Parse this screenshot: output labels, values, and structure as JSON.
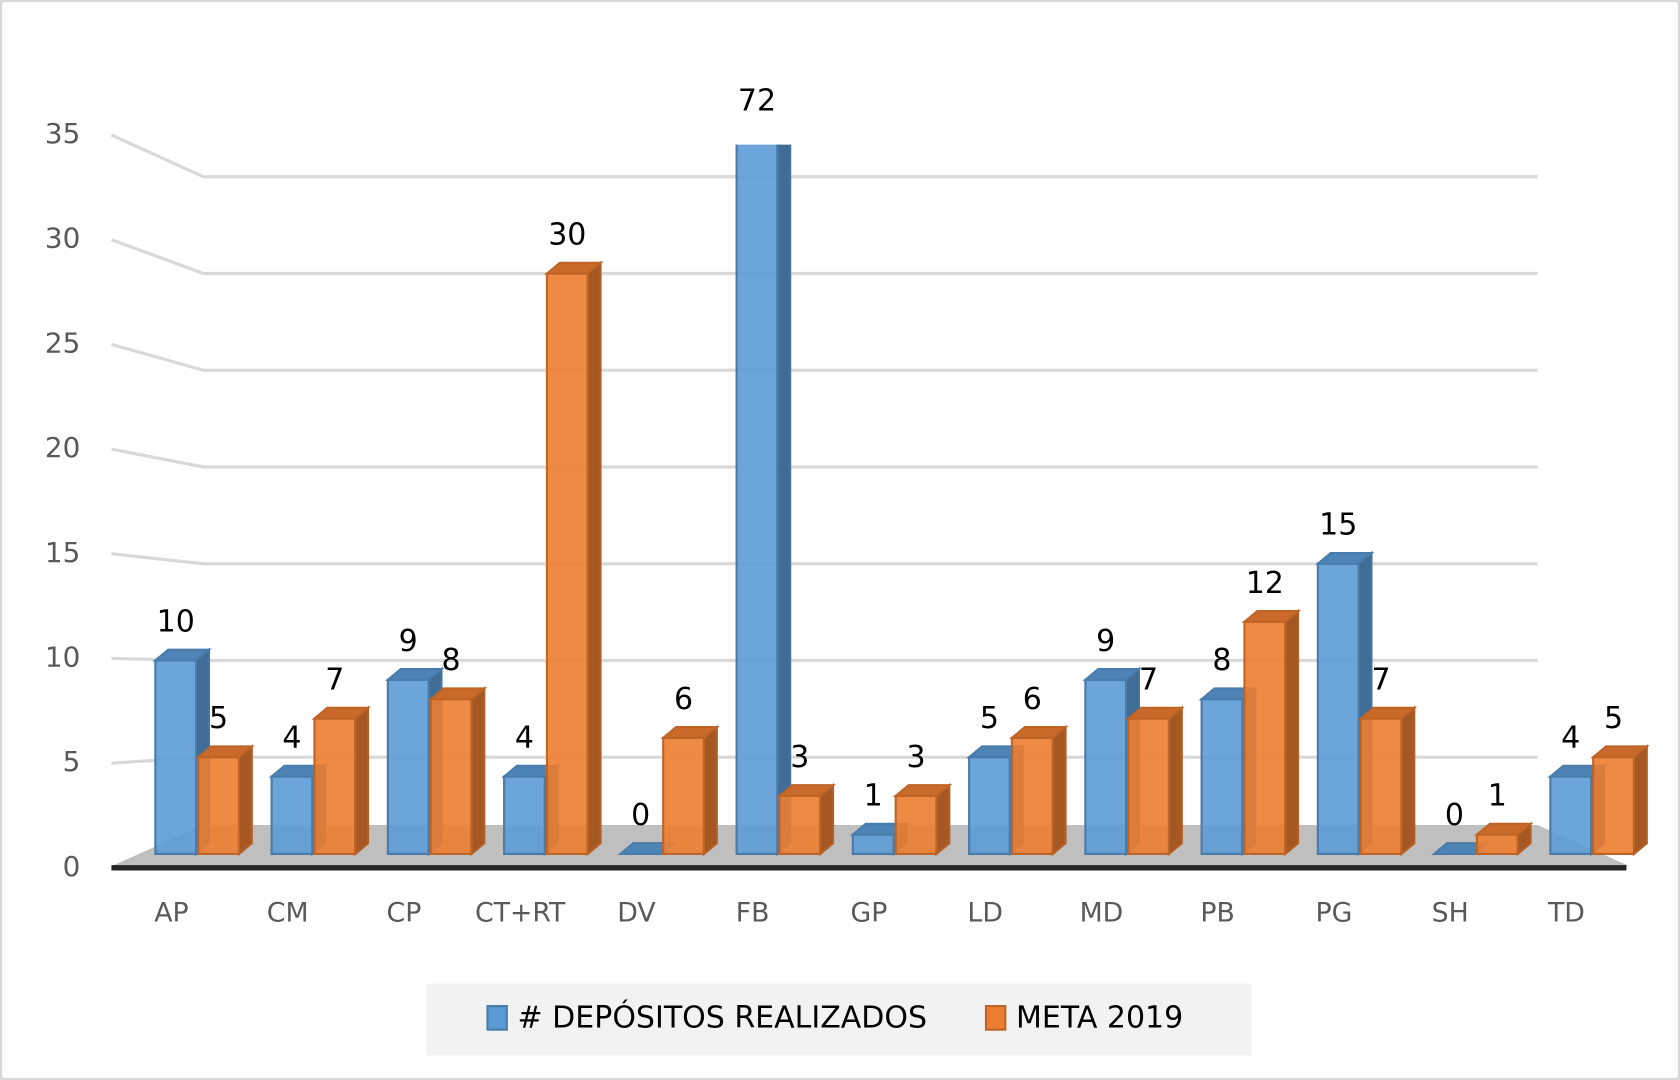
{
  "chart_data": {
    "type": "bar3d",
    "categories": [
      "AP",
      "CM",
      "CP",
      "CT+RT",
      "DV",
      "FB",
      "GP",
      "LD",
      "MD",
      "PB",
      "PG",
      "SH",
      "TD"
    ],
    "series": [
      {
        "name": "# DEPÓSITOS REALIZADOS",
        "color": "#5b9bd5",
        "values": [
          10,
          4,
          9,
          4,
          0,
          72,
          1,
          5,
          9,
          8,
          15,
          0,
          4
        ]
      },
      {
        "name": "META 2019",
        "color": "#ed7d31",
        "values": [
          5,
          7,
          8,
          30,
          6,
          3,
          3,
          6,
          7,
          12,
          7,
          1,
          5
        ]
      }
    ],
    "ylim": [
      0,
      35
    ],
    "yticks": [
      0,
      5,
      10,
      15,
      20,
      25,
      30,
      35
    ],
    "grid": true,
    "legend": "bottom"
  }
}
